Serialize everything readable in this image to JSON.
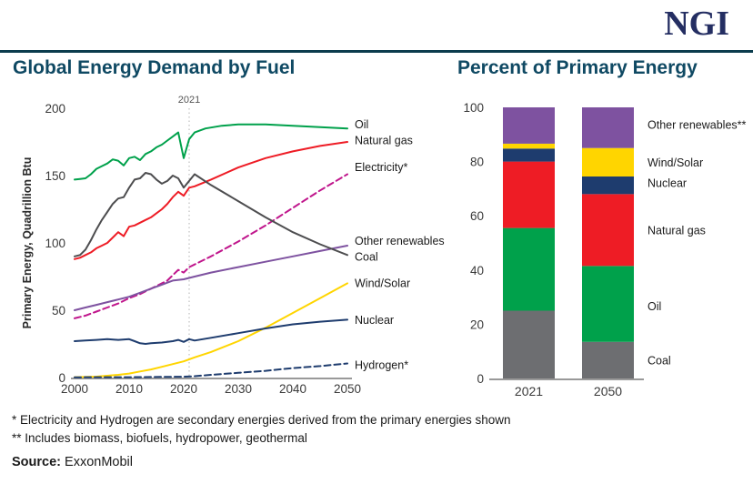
{
  "header": {
    "logo": "NGI",
    "left_title": "Global Energy Demand by Fuel",
    "right_title": "Percent of Primary Energy"
  },
  "footnotes": {
    "note1": "* Electricity and Hydrogen are secondary energies derived from the primary energies shown",
    "note2": "** Includes biomass, biofuels, hydropower, geothermal",
    "source_label": "Source:",
    "source_value": " ExxonMobil"
  },
  "colors": {
    "brand_navy": "#242e62",
    "title_teal": "#0f4963",
    "divider_teal": "#0b3c4d",
    "axis_gray": "#999999",
    "tick_text": "#3a3a3a",
    "label_text": "#1a1a1a"
  },
  "chart_data": [
    {
      "type": "line",
      "title": "Global Energy Demand by Fuel",
      "ylabel": "Primary Energy, Quadrillion Btu",
      "xlabel": "",
      "xlim": [
        2000,
        2050
      ],
      "ylim": [
        0,
        200
      ],
      "xticks": [
        2000,
        2010,
        2020,
        2030,
        2040,
        2050
      ],
      "yticks": [
        0,
        50,
        100,
        150,
        200
      ],
      "grid": false,
      "legend_position": "right-of-lines",
      "annotation": {
        "label": "2021",
        "x": 2021
      },
      "series": [
        {
          "name": "Oil",
          "color": "#00a14b",
          "dash": false,
          "label_value": 188,
          "points": [
            [
              2000,
              147
            ],
            [
              2001,
              147.5
            ],
            [
              2002,
              148
            ],
            [
              2003,
              151
            ],
            [
              2004,
              155
            ],
            [
              2005,
              157
            ],
            [
              2006,
              159
            ],
            [
              2007,
              162
            ],
            [
              2008,
              161
            ],
            [
              2009,
              157.5
            ],
            [
              2010,
              163
            ],
            [
              2011,
              164
            ],
            [
              2012,
              161.5
            ],
            [
              2013,
              166
            ],
            [
              2014,
              168
            ],
            [
              2015,
              171
            ],
            [
              2016,
              173
            ],
            [
              2017,
              176
            ],
            [
              2018,
              179
            ],
            [
              2019,
              182
            ],
            [
              2020,
              163
            ],
            [
              2021,
              177
            ],
            [
              2022,
              182
            ],
            [
              2024,
              185
            ],
            [
              2027,
              187
            ],
            [
              2030,
              188
            ],
            [
              2035,
              188
            ],
            [
              2040,
              187
            ],
            [
              2045,
              186
            ],
            [
              2050,
              185
            ]
          ]
        },
        {
          "name": "Natural gas",
          "color": "#ee1c25",
          "dash": false,
          "label_value": 176,
          "points": [
            [
              2000,
              88
            ],
            [
              2001,
              89
            ],
            [
              2002,
              91
            ],
            [
              2003,
              93
            ],
            [
              2004,
              96
            ],
            [
              2005,
              98
            ],
            [
              2006,
              100
            ],
            [
              2007,
              104
            ],
            [
              2008,
              108
            ],
            [
              2009,
              105
            ],
            [
              2010,
              112
            ],
            [
              2011,
              113
            ],
            [
              2012,
              115
            ],
            [
              2013,
              117
            ],
            [
              2014,
              119
            ],
            [
              2015,
              122
            ],
            [
              2016,
              125
            ],
            [
              2017,
              129
            ],
            [
              2018,
              134
            ],
            [
              2019,
              138
            ],
            [
              2020,
              135
            ],
            [
              2021,
              141
            ],
            [
              2022,
              142
            ],
            [
              2025,
              147
            ],
            [
              2030,
              156
            ],
            [
              2035,
              163
            ],
            [
              2040,
              168
            ],
            [
              2045,
              172
            ],
            [
              2050,
              175
            ]
          ]
        },
        {
          "name": "Electricity*",
          "color": "#c0168c",
          "dash": true,
          "label_value": 156,
          "points": [
            [
              2000,
              44
            ],
            [
              2002,
              46
            ],
            [
              2004,
              49
            ],
            [
              2006,
              52
            ],
            [
              2008,
              55
            ],
            [
              2010,
              59
            ],
            [
              2012,
              62
            ],
            [
              2014,
              66
            ],
            [
              2016,
              70
            ],
            [
              2017,
              72
            ],
            [
              2018,
              76
            ],
            [
              2019,
              80
            ],
            [
              2020,
              78
            ],
            [
              2021,
              82
            ],
            [
              2022,
              84
            ],
            [
              2025,
              90
            ],
            [
              2030,
              101
            ],
            [
              2035,
              113
            ],
            [
              2040,
              126
            ],
            [
              2045,
              139
            ],
            [
              2050,
              151
            ]
          ]
        },
        {
          "name": "Other renewables",
          "color": "#7e52a0",
          "dash": false,
          "label_value": 101.5,
          "points": [
            [
              2000,
              50
            ],
            [
              2002,
              52
            ],
            [
              2004,
              54
            ],
            [
              2006,
              56
            ],
            [
              2008,
              58
            ],
            [
              2010,
              60
            ],
            [
              2012,
              63
            ],
            [
              2014,
              66
            ],
            [
              2016,
              69
            ],
            [
              2018,
              72
            ],
            [
              2020,
              73
            ],
            [
              2022,
              75
            ],
            [
              2025,
              78
            ],
            [
              2030,
              82
            ],
            [
              2035,
              86
            ],
            [
              2040,
              90
            ],
            [
              2045,
              94
            ],
            [
              2050,
              98
            ]
          ]
        },
        {
          "name": "Coal",
          "color": "#4d4d4f",
          "dash": false,
          "label_value": 89.5,
          "points": [
            [
              2000,
              90
            ],
            [
              2001,
              91
            ],
            [
              2002,
              95
            ],
            [
              2003,
              102
            ],
            [
              2004,
              110
            ],
            [
              2005,
              117
            ],
            [
              2006,
              123
            ],
            [
              2007,
              129
            ],
            [
              2008,
              133
            ],
            [
              2009,
              134
            ],
            [
              2010,
              141
            ],
            [
              2011,
              147
            ],
            [
              2012,
              148
            ],
            [
              2013,
              152
            ],
            [
              2014,
              151
            ],
            [
              2015,
              147
            ],
            [
              2016,
              144
            ],
            [
              2017,
              146
            ],
            [
              2018,
              150
            ],
            [
              2019,
              148
            ],
            [
              2020,
              141
            ],
            [
              2021,
              146
            ],
            [
              2022,
              151
            ],
            [
              2025,
              143
            ],
            [
              2030,
              131
            ],
            [
              2035,
              119
            ],
            [
              2040,
              108
            ],
            [
              2045,
              99
            ],
            [
              2050,
              91
            ]
          ]
        },
        {
          "name": "Wind/Solar",
          "color": "#ffd500",
          "dash": false,
          "label_value": 70,
          "points": [
            [
              2000,
              0.3
            ],
            [
              2004,
              0.7
            ],
            [
              2008,
              2
            ],
            [
              2010,
              3
            ],
            [
              2012,
              4.5
            ],
            [
              2014,
              6
            ],
            [
              2016,
              8
            ],
            [
              2018,
              10
            ],
            [
              2020,
              12
            ],
            [
              2022,
              15
            ],
            [
              2025,
              19
            ],
            [
              2030,
              27
            ],
            [
              2035,
              37
            ],
            [
              2040,
              48
            ],
            [
              2045,
              59
            ],
            [
              2050,
              70
            ]
          ]
        },
        {
          "name": "Nuclear",
          "color": "#1e3c6e",
          "dash": false,
          "label_value": 42.5,
          "points": [
            [
              2000,
              27
            ],
            [
              2002,
              27.5
            ],
            [
              2004,
              28
            ],
            [
              2006,
              28.5
            ],
            [
              2008,
              28
            ],
            [
              2010,
              28.5
            ],
            [
              2011,
              27
            ],
            [
              2012,
              25.5
            ],
            [
              2013,
              25
            ],
            [
              2014,
              25.5
            ],
            [
              2016,
              26
            ],
            [
              2018,
              27
            ],
            [
              2019,
              28
            ],
            [
              2020,
              26.5
            ],
            [
              2021,
              28.5
            ],
            [
              2022,
              27.5
            ],
            [
              2025,
              29.5
            ],
            [
              2030,
              33
            ],
            [
              2035,
              36.5
            ],
            [
              2040,
              39.5
            ],
            [
              2045,
              41.5
            ],
            [
              2050,
              43
            ]
          ]
        },
        {
          "name": "Hydrogen*",
          "color": "#1e3c6e",
          "dash": true,
          "label_value": 9,
          "points": [
            [
              2000,
              0.2
            ],
            [
              2010,
              0.3
            ],
            [
              2020,
              0.6
            ],
            [
              2022,
              1
            ],
            [
              2025,
              2
            ],
            [
              2030,
              3.5
            ],
            [
              2035,
              5
            ],
            [
              2040,
              7
            ],
            [
              2045,
              8.5
            ],
            [
              2050,
              10.5
            ]
          ]
        }
      ]
    },
    {
      "type": "stacked_bar",
      "title": "Percent of Primary Energy",
      "categories": [
        "2021",
        "2050"
      ],
      "ylim": [
        0,
        100
      ],
      "yticks": [
        0,
        20,
        40,
        60,
        80,
        100
      ],
      "grid": false,
      "legend_position": "right",
      "segments": [
        {
          "name": "Coal",
          "color": "#6d6e71",
          "values": [
            25,
            13.5
          ],
          "label_value": 6.5
        },
        {
          "name": "Oil",
          "color": "#00a14b",
          "values": [
            30.5,
            28
          ],
          "label_value": 26.5
        },
        {
          "name": "Natural gas",
          "color": "#ee1c25",
          "values": [
            24.5,
            26.5
          ],
          "label_value": 54.5
        },
        {
          "name": "Nuclear",
          "color": "#1e3c6e",
          "values": [
            4.8,
            6.5
          ],
          "label_value": 72
        },
        {
          "name": "Wind/Solar",
          "color": "#ffd500",
          "values": [
            1.8,
            10.5
          ],
          "label_value": 79.5
        },
        {
          "name": "Other renewables**",
          "color": "#7e52a0",
          "values": [
            13.4,
            15
          ],
          "label_value": 93.5
        }
      ]
    }
  ]
}
